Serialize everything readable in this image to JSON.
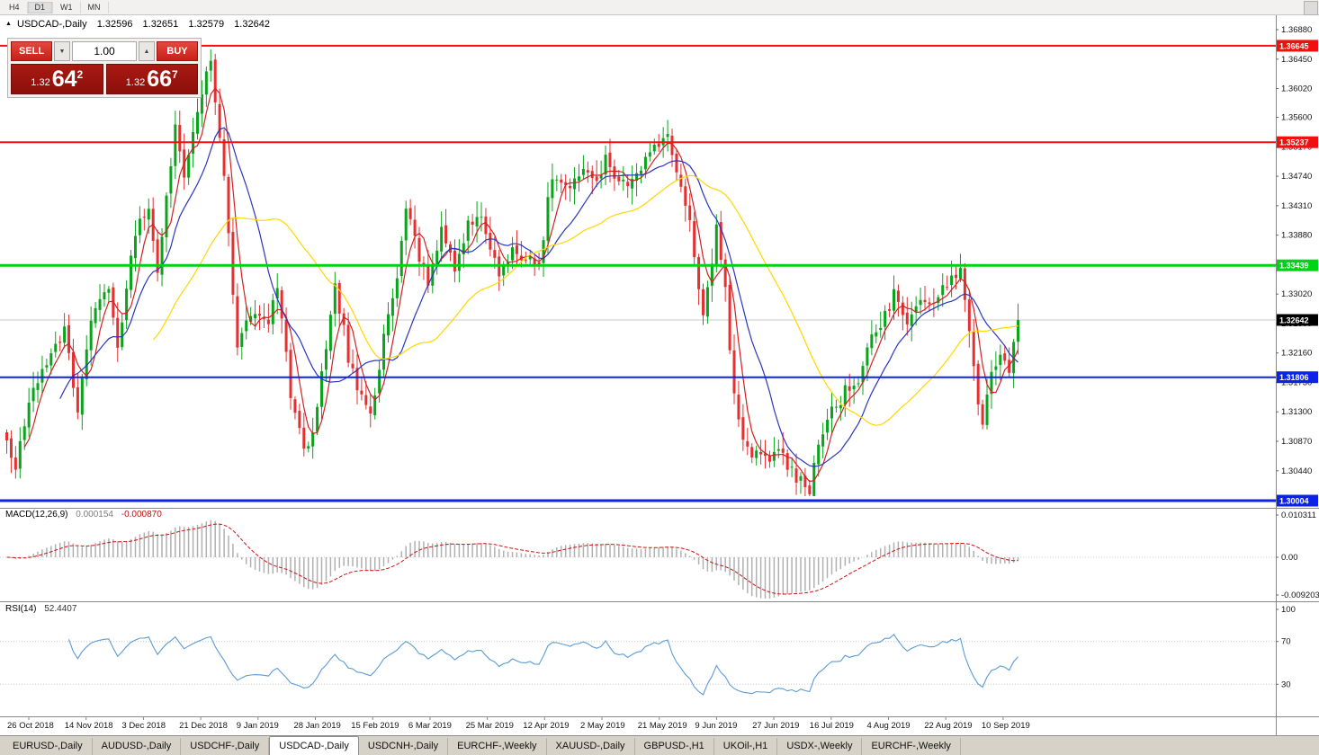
{
  "toolbar": {
    "periods": [
      "H4",
      "D1",
      "W1",
      "MN"
    ],
    "active": "D1"
  },
  "chart_header": {
    "marker": "▲",
    "symbol": "USDCAD-,Daily",
    "open": "1.32596",
    "high": "1.32651",
    "low": "1.32579",
    "close": "1.32642"
  },
  "trade_panel": {
    "sell_label": "SELL",
    "buy_label": "BUY",
    "volume": "1.00",
    "spinner_down": "▼",
    "spinner_up": "▲",
    "bid": {
      "prefix": "1.32",
      "big": "64",
      "sup": "2"
    },
    "ask": {
      "prefix": "1.32",
      "big": "66",
      "sup": "7"
    },
    "button_color": "#d52b1e",
    "price_box_color": "#9a1510"
  },
  "chart_data": {
    "type": "candlestick",
    "title": "USDCAD-,Daily",
    "price_range": {
      "top": 1.3688,
      "bottom": 1.30004
    },
    "price_axis_ticks": [
      "1.36880",
      "1.36450",
      "1.36020",
      "1.35600",
      "1.35170",
      "1.34740",
      "1.34310",
      "1.33880",
      "1.33450",
      "1.33020",
      "1.32590",
      "1.32160",
      "1.31730",
      "1.31300",
      "1.30870",
      "1.30440",
      "1.30010"
    ],
    "horizontal_lines": [
      {
        "price": 1.36645,
        "label": "1.36645",
        "color": "#f01010",
        "width": 2
      },
      {
        "price": 1.35237,
        "label": "1.35237",
        "color": "#f01010",
        "width": 2
      },
      {
        "price": 1.33439,
        "label": "1.33439",
        "color": "#00d215",
        "width": 3
      },
      {
        "price": 1.31806,
        "label": "1.31806",
        "color": "#0d22e8",
        "width": 2
      },
      {
        "price": 1.30004,
        "label": "1.30004",
        "color": "#0d22e8",
        "width": 3
      }
    ],
    "current_price": {
      "value": 1.32642,
      "label": "1.32642",
      "tag_color": "#000000"
    },
    "colors": {
      "bull": "#0ba31c",
      "bear": "#e43030",
      "ma_fast": "#d42020",
      "ma_mid": "#2a35c0",
      "ma_slow": "#ffd700",
      "macd_hist": "#b0b0b0",
      "macd_signal": "#cc1111",
      "rsi_line": "#5b9bd5"
    },
    "candles": {
      "count": 229,
      "note": "approximate swing anchors [bar_index, close_price] read from the chart",
      "anchors": [
        [
          0,
          1.308
        ],
        [
          2,
          1.3045
        ],
        [
          5,
          1.314
        ],
        [
          10,
          1.322
        ],
        [
          13,
          1.325
        ],
        [
          16,
          1.313
        ],
        [
          19,
          1.327
        ],
        [
          23,
          1.331
        ],
        [
          25,
          1.322
        ],
        [
          29,
          1.339
        ],
        [
          32,
          1.343
        ],
        [
          34,
          1.334
        ],
        [
          38,
          1.354
        ],
        [
          40,
          1.348
        ],
        [
          43,
          1.356
        ],
        [
          46,
          1.3645
        ],
        [
          49,
          1.348
        ],
        [
          52,
          1.322
        ],
        [
          55,
          1.328
        ],
        [
          59,
          1.326
        ],
        [
          61,
          1.331
        ],
        [
          64,
          1.316
        ],
        [
          67,
          1.308
        ],
        [
          69,
          1.309
        ],
        [
          72,
          1.323
        ],
        [
          74,
          1.332
        ],
        [
          77,
          1.321
        ],
        [
          80,
          1.315
        ],
        [
          82,
          1.312
        ],
        [
          85,
          1.324
        ],
        [
          88,
          1.333
        ],
        [
          90,
          1.343
        ],
        [
          93,
          1.335
        ],
        [
          95,
          1.332
        ],
        [
          98,
          1.339
        ],
        [
          101,
          1.334
        ],
        [
          104,
          1.341
        ],
        [
          107,
          1.342
        ],
        [
          111,
          1.333
        ],
        [
          114,
          1.337
        ],
        [
          117,
          1.335
        ],
        [
          120,
          1.334
        ],
        [
          123,
          1.348
        ],
        [
          126,
          1.346
        ],
        [
          130,
          1.348
        ],
        [
          133,
          1.347
        ],
        [
          135,
          1.35
        ],
        [
          138,
          1.346
        ],
        [
          141,
          1.347
        ],
        [
          144,
          1.35
        ],
        [
          147,
          1.352
        ],
        [
          149,
          1.3545
        ],
        [
          151,
          1.347
        ],
        [
          154,
          1.341
        ],
        [
          157,
          1.327
        ],
        [
          160,
          1.34
        ],
        [
          162,
          1.331
        ],
        [
          164,
          1.315
        ],
        [
          166,
          1.308
        ],
        [
          169,
          1.307
        ],
        [
          172,
          1.305
        ],
        [
          174,
          1.308
        ],
        [
          177,
          1.304
        ],
        [
          179,
          1.303
        ],
        [
          181,
          1.302
        ],
        [
          184,
          1.31
        ],
        [
          186,
          1.313
        ],
        [
          189,
          1.316
        ],
        [
          192,
          1.318
        ],
        [
          195,
          1.324
        ],
        [
          198,
          1.327
        ],
        [
          200,
          1.33
        ],
        [
          203,
          1.326
        ],
        [
          205,
          1.329
        ],
        [
          207,
          1.328
        ],
        [
          210,
          1.33
        ],
        [
          212,
          1.332
        ],
        [
          215,
          1.333
        ],
        [
          217,
          1.325
        ],
        [
          219,
          1.315
        ],
        [
          220,
          1.312
        ],
        [
          222,
          1.318
        ],
        [
          224,
          1.322
        ],
        [
          226,
          1.319
        ],
        [
          228,
          1.32642
        ]
      ]
    },
    "moving_averages": [
      {
        "period": 5,
        "color_key": "ma_fast"
      },
      {
        "period": 13,
        "color_key": "ma_mid"
      },
      {
        "period": 34,
        "color_key": "ma_slow"
      }
    ],
    "indicators": {
      "macd": {
        "name": "MACD(12,26,9)",
        "main_value": "0.000154",
        "signal_value": "-0.000870",
        "axis_max": "0.010311",
        "axis_mid": "0.00",
        "axis_min": "-0.009203",
        "params": [
          12,
          26,
          9
        ]
      },
      "rsi": {
        "name": "RSI(14)",
        "value": "52.4407",
        "period": 14,
        "axis": [
          "100",
          "70",
          "30"
        ],
        "levels": [
          70,
          30
        ]
      }
    },
    "time_labels": [
      "26 Oct 2018",
      "14 Nov 2018",
      "3 Dec 2018",
      "21 Dec 2018",
      "9 Jan 2019",
      "28 Jan 2019",
      "15 Feb 2019",
      "6 Mar 2019",
      "25 Mar 2019",
      "12 Apr 2019",
      "2 May 2019",
      "21 May 2019",
      "9 Jun 2019",
      "27 Jun 2019",
      "16 Jul 2019",
      "4 Aug 2019",
      "22 Aug 2019",
      "10 Sep 2019"
    ]
  },
  "tabs": {
    "items": [
      "EURUSD-,Daily",
      "AUDUSD-,Daily",
      "USDCHF-,Daily",
      "USDCAD-,Daily",
      "USDCNH-,Daily",
      "EURCHF-,Weekly",
      "XAUUSD-,Daily",
      "GBPUSD-,H1",
      "UKOil-,H1",
      "USDX-,Weekly",
      "EURCHF-,Weekly"
    ],
    "active_index": 3
  }
}
